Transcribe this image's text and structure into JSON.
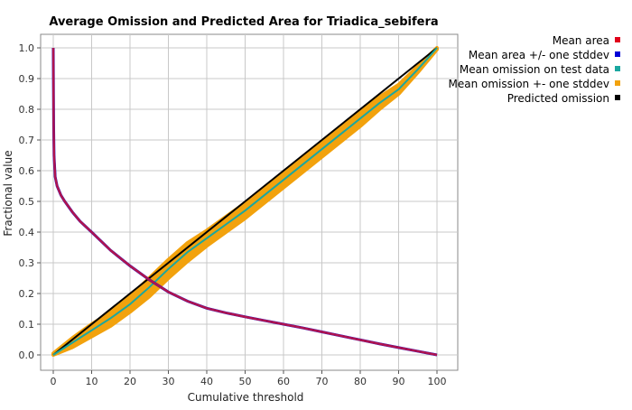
{
  "chart_data": {
    "type": "line",
    "title": "Average Omission and Predicted Area for Triadica_sebifera",
    "xlabel": "Cumulative threshold",
    "ylabel": "Fractional value",
    "xlim": [
      0,
      100
    ],
    "ylim": [
      0,
      1.0
    ],
    "x_ticks": [
      "0",
      "10",
      "20",
      "30",
      "40",
      "50",
      "60",
      "70",
      "80",
      "90",
      "100"
    ],
    "y_ticks": [
      "0.0",
      "0.1",
      "0.2",
      "0.3",
      "0.4",
      "0.5",
      "0.6",
      "0.7",
      "0.8",
      "0.9",
      "1.0"
    ],
    "grid": true,
    "legend_position": "top-right",
    "series": [
      {
        "name": "Mean area",
        "color": "#e0001b",
        "x": [
          0,
          0.1,
          0.2,
          0.5,
          1,
          2,
          3,
          5,
          7,
          10,
          15,
          20,
          25,
          30,
          35,
          40,
          45,
          50,
          55,
          60,
          65,
          70,
          75,
          80,
          85,
          90,
          95,
          100
        ],
        "y": [
          1.0,
          0.75,
          0.65,
          0.58,
          0.55,
          0.52,
          0.5,
          0.465,
          0.435,
          0.4,
          0.34,
          0.29,
          0.245,
          0.205,
          0.175,
          0.152,
          0.137,
          0.124,
          0.112,
          0.1,
          0.088,
          0.075,
          0.062,
          0.049,
          0.036,
          0.024,
          0.012,
          0.0
        ]
      },
      {
        "name": "Mean area +/- one stddev",
        "color": "#0000d6",
        "x": [
          0,
          0.1,
          0.2,
          0.5,
          1,
          2,
          3,
          5,
          7,
          10,
          15,
          20,
          25,
          30,
          35,
          40,
          45,
          50,
          55,
          60,
          65,
          70,
          75,
          80,
          85,
          90,
          95,
          100
        ],
        "y": [
          1.0,
          0.75,
          0.65,
          0.58,
          0.55,
          0.52,
          0.5,
          0.465,
          0.435,
          0.4,
          0.34,
          0.29,
          0.245,
          0.205,
          0.175,
          0.152,
          0.137,
          0.124,
          0.112,
          0.1,
          0.088,
          0.075,
          0.062,
          0.049,
          0.036,
          0.024,
          0.012,
          0.0
        ]
      },
      {
        "name": "Mean omission on test data",
        "color": "#1aa7a0",
        "x": [
          0,
          5,
          10,
          15,
          20,
          25,
          30,
          35,
          40,
          45,
          50,
          55,
          60,
          65,
          70,
          75,
          80,
          85,
          90,
          95,
          100
        ],
        "y": [
          0.0,
          0.04,
          0.08,
          0.12,
          0.165,
          0.22,
          0.28,
          0.335,
          0.38,
          0.425,
          0.47,
          0.52,
          0.57,
          0.62,
          0.67,
          0.72,
          0.77,
          0.82,
          0.865,
          0.93,
          1.0
        ]
      },
      {
        "name": "Mean omission +- one stddev",
        "color": "#f2a20d",
        "x": [
          0,
          5,
          10,
          15,
          20,
          25,
          30,
          35,
          40,
          45,
          50,
          55,
          60,
          65,
          70,
          75,
          80,
          85,
          90,
          95,
          100
        ],
        "upper": [
          0.005,
          0.055,
          0.1,
          0.14,
          0.19,
          0.25,
          0.31,
          0.365,
          0.405,
          0.45,
          0.495,
          0.545,
          0.595,
          0.645,
          0.695,
          0.745,
          0.795,
          0.84,
          0.88,
          0.94,
          1.0
        ],
        "lower": [
          0.0,
          0.025,
          0.06,
          0.095,
          0.14,
          0.19,
          0.25,
          0.305,
          0.355,
          0.4,
          0.445,
          0.495,
          0.545,
          0.595,
          0.645,
          0.695,
          0.745,
          0.8,
          0.85,
          0.92,
          0.995
        ]
      },
      {
        "name": "Predicted omission",
        "color": "#000000",
        "x": [
          0,
          100
        ],
        "y": [
          0,
          1.0
        ]
      }
    ]
  }
}
